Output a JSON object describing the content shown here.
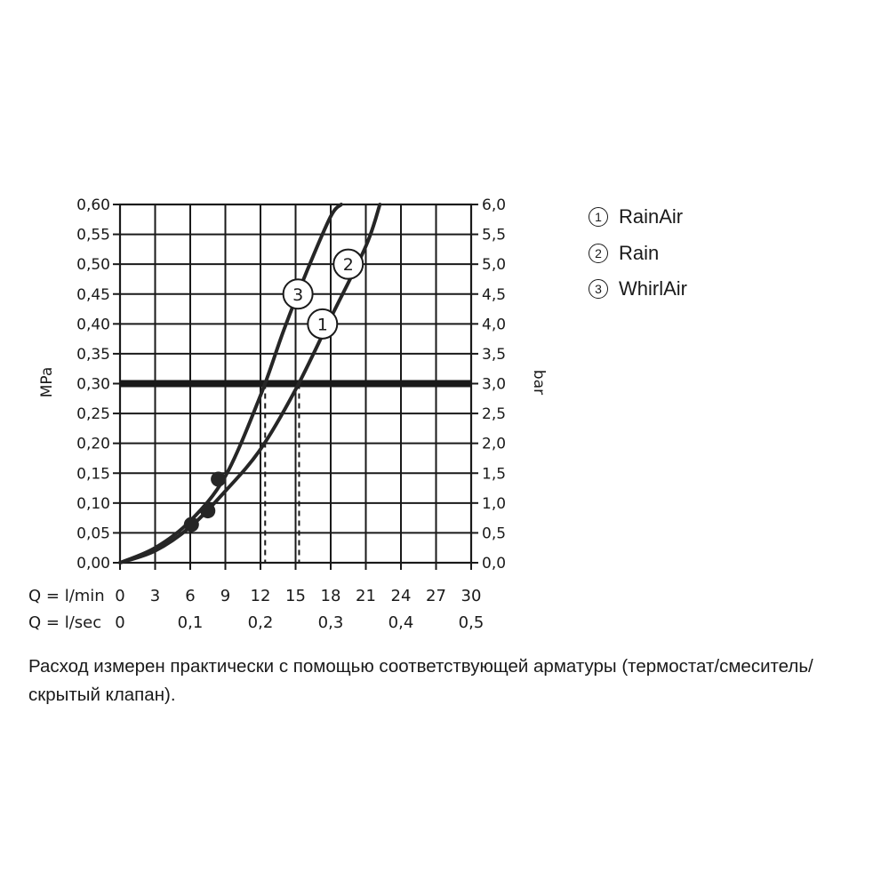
{
  "chart_data": {
    "type": "line",
    "y_left_label": "MPa",
    "y_right_label": "bar",
    "y_left_ticks": [
      "0,00",
      "0,05",
      "0,10",
      "0,15",
      "0,20",
      "0,25",
      "0,30",
      "0,35",
      "0,40",
      "0,45",
      "0,50",
      "0,55",
      "0,60"
    ],
    "y_right_ticks": [
      "0,0",
      "0,5",
      "1,0",
      "1,5",
      "2,0",
      "2,5",
      "3,0",
      "3,5",
      "4,0",
      "4,5",
      "5,0",
      "5,5",
      "6,0"
    ],
    "y_range_mpa": [
      0,
      0.6
    ],
    "x_range_lmin": [
      0,
      30
    ],
    "x_lmin_label": "Q = l/min",
    "x_lmin_ticks": [
      "0",
      "3",
      "6",
      "9",
      "12",
      "15",
      "18",
      "21",
      "24",
      "27",
      "30"
    ],
    "x_lmin_tick_values": [
      0,
      3,
      6,
      9,
      12,
      15,
      18,
      21,
      24,
      27,
      30
    ],
    "x_lsec_label": "Q = l/sec",
    "x_lsec_ticks": [
      "0",
      "0,1",
      "0,2",
      "0,3",
      "0,4",
      "0,5"
    ],
    "x_lsec_tick_values": [
      0,
      0.1,
      0.2,
      0.3,
      0.4,
      0.5
    ],
    "grid": true,
    "reference_line_mpa": 0.3,
    "series": [
      {
        "marker": "1",
        "points": [
          [
            0,
            0
          ],
          [
            3,
            0.02
          ],
          [
            6,
            0.06
          ],
          [
            9,
            0.12
          ],
          [
            12,
            0.19
          ],
          [
            15,
            0.29
          ],
          [
            18,
            0.41
          ],
          [
            21,
            0.53
          ],
          [
            22.2,
            0.6
          ]
        ],
        "marker_label_at": [
          17.3,
          0.4
        ],
        "dot": [
          7.5,
          0.087
        ]
      },
      {
        "marker": "2",
        "points": [
          [
            0,
            0
          ],
          [
            3,
            0.02
          ],
          [
            6,
            0.06
          ],
          [
            9,
            0.12
          ],
          [
            12,
            0.19
          ],
          [
            15,
            0.29
          ],
          [
            18,
            0.41
          ],
          [
            21,
            0.53
          ],
          [
            22.2,
            0.6
          ]
        ],
        "marker_label_at": [
          19.5,
          0.5
        ],
        "dot": [
          6.1,
          0.064
        ]
      },
      {
        "marker": "3",
        "points": [
          [
            0,
            0
          ],
          [
            3,
            0.025
          ],
          [
            6,
            0.07
          ],
          [
            9,
            0.145
          ],
          [
            12,
            0.28
          ],
          [
            14,
            0.39
          ],
          [
            16,
            0.49
          ],
          [
            18,
            0.58
          ],
          [
            18.9,
            0.6
          ]
        ],
        "marker_label_at": [
          15.2,
          0.45
        ],
        "dot": [
          8.4,
          0.14
        ]
      }
    ],
    "dashed_markers_lmin": [
      12.4,
      15.3
    ]
  },
  "legend": [
    {
      "num": "1",
      "label": "RainAir"
    },
    {
      "num": "2",
      "label": "Rain"
    },
    {
      "num": "3",
      "label": "WhirlAir"
    }
  ],
  "caption": "Расход измерен практически с помощью соответствующей арматуры (термостат/смеситель/скрытый клапан)."
}
